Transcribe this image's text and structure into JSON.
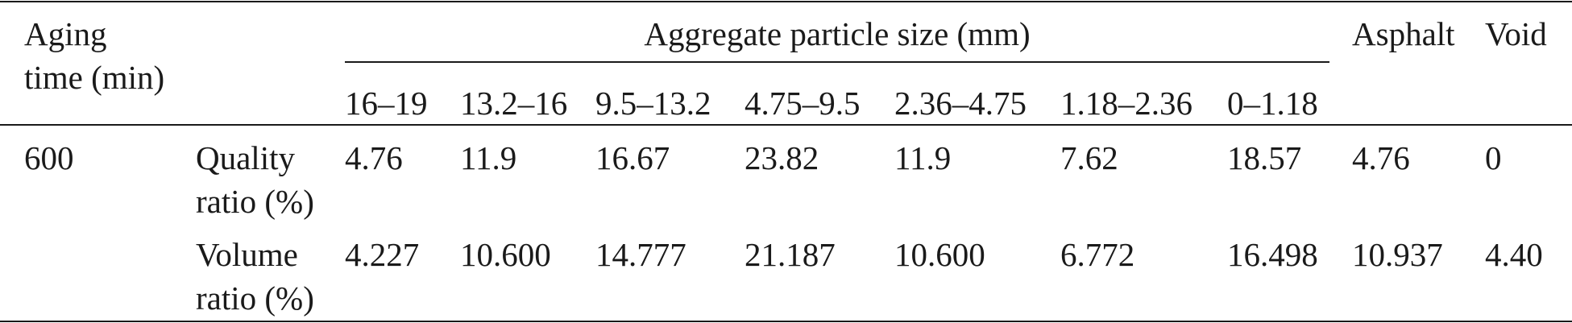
{
  "table": {
    "header": {
      "aging_time_line1": "Aging",
      "aging_time_line2": "time (min)",
      "group_label": "Aggregate particle size (mm)",
      "size_columns": [
        "16–19",
        "13.2–16",
        "9.5–13.2",
        "4.75–9.5",
        "2.36–4.75",
        "1.18–2.36",
        "0–1.18"
      ],
      "asphalt": "Asphalt",
      "void": "Void"
    },
    "rows": [
      {
        "aging_time": "600",
        "label_line1": "Quality",
        "label_line2": "ratio (%)",
        "values": [
          "4.76",
          "11.9",
          "16.67",
          "23.82",
          "11.9",
          "7.62",
          "18.57",
          "4.76",
          "0"
        ]
      },
      {
        "aging_time": "",
        "label_line1": "Volume",
        "label_line2": "ratio (%)",
        "values": [
          "4.227",
          "10.600",
          "14.777",
          "21.187",
          "10.600",
          "6.772",
          "16.498",
          "10.937",
          "4.40"
        ]
      }
    ]
  }
}
